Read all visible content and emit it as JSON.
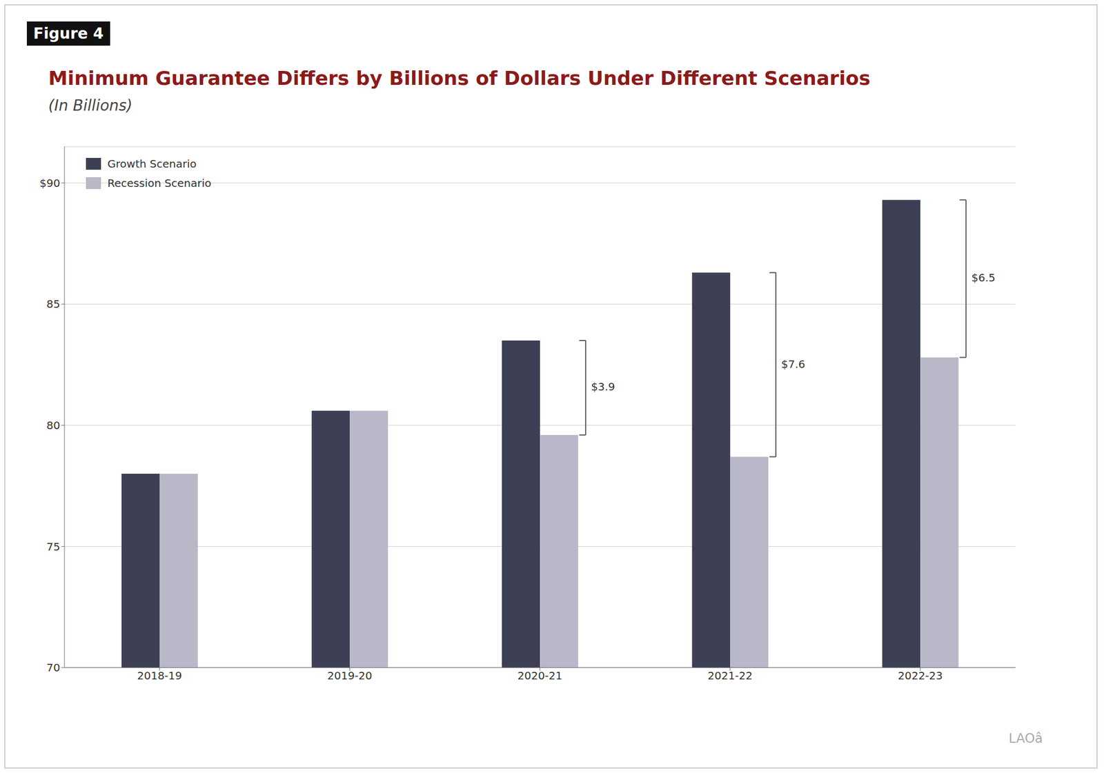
{
  "chart_data": {
    "type": "bar",
    "title": "Minimum Guarantee Differs by Billions of Dollars Under Different Scenarios",
    "subtitle": "(In Billions)",
    "figure_label": "Figure 4",
    "watermark": "LAOâ",
    "categories": [
      "2018-19",
      "2019-20",
      "2020-21",
      "2021-22",
      "2022-23"
    ],
    "series": [
      {
        "name": "Growth Scenario",
        "color": "#3d3f54",
        "values": [
          78.0,
          80.6,
          83.5,
          86.3,
          89.3
        ]
      },
      {
        "name": "Recession Scenario",
        "color": "#b8b8c8",
        "values": [
          78.0,
          80.6,
          79.6,
          78.7,
          82.8
        ]
      }
    ],
    "ylim": [
      70,
      91.5
    ],
    "yticks": [
      70,
      75,
      80,
      85,
      {
        "value": 90,
        "label": "$90"
      }
    ],
    "grid": true,
    "legend": "upper left",
    "annotations": [
      {
        "category": "2020-21",
        "text": "$3.9"
      },
      {
        "category": "2021-22",
        "text": "$7.6"
      },
      {
        "category": "2022-23",
        "text": "$6.5"
      }
    ]
  }
}
